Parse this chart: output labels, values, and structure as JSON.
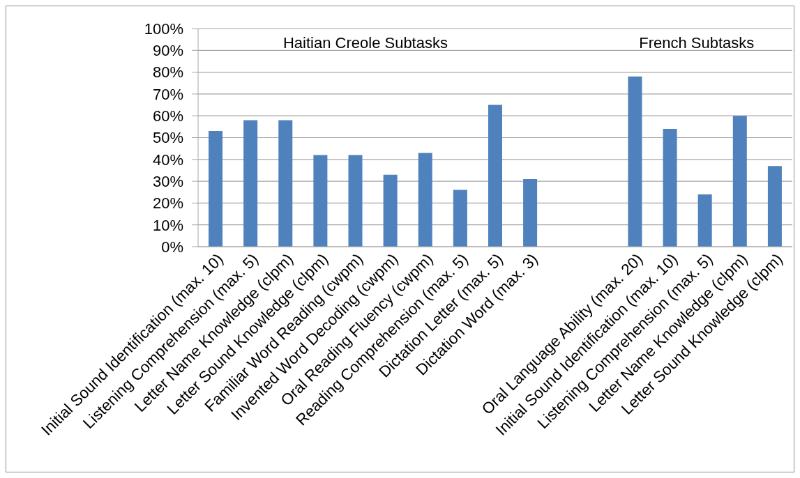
{
  "chart_data": {
    "type": "bar",
    "categories": [
      "Initial Sound Identification (max. 10)",
      "Listening Comprehension (max. 5)",
      "Letter Name Knowledge (clpm)",
      "Letter Sound Knowledge (clpm)",
      "Familiar Word Reading (cwpm)",
      "Invented Word Decoding (cwpm)",
      "Oral Reading Fluency (cwpm)",
      "Reading Comprehension (max. 5)",
      "Dictation Letter (max. 5)",
      "Dictation Word (max. 3)",
      null,
      null,
      "Oral Language Ability (max. 20)",
      "Initial Sound Identification (max. 10)",
      "Listening Comprehension (max. 5)",
      "Letter Name Knowledge (clpm)",
      "Letter Sound Knowledge (clpm)"
    ],
    "values": [
      53,
      58,
      58,
      42,
      42,
      33,
      43,
      26,
      65,
      31,
      null,
      null,
      78,
      54,
      24,
      60,
      37
    ],
    "color": "#4f81bd",
    "ylim": [
      0,
      100
    ],
    "yticks": [
      {
        "value": 0,
        "label": "0%"
      },
      {
        "value": 10,
        "label": "10%"
      },
      {
        "value": 20,
        "label": "20%"
      },
      {
        "value": 30,
        "label": "30%"
      },
      {
        "value": 40,
        "label": "40%"
      },
      {
        "value": 50,
        "label": "50%"
      },
      {
        "value": 60,
        "label": "60%"
      },
      {
        "value": 70,
        "label": "70%"
      },
      {
        "value": 80,
        "label": "80%"
      },
      {
        "value": 90,
        "label": "90%"
      },
      {
        "value": 100,
        "label": "100%"
      }
    ],
    "grid": "y",
    "annotations": [
      "Haitian Creole Subtasks",
      "French Subtasks"
    ]
  }
}
